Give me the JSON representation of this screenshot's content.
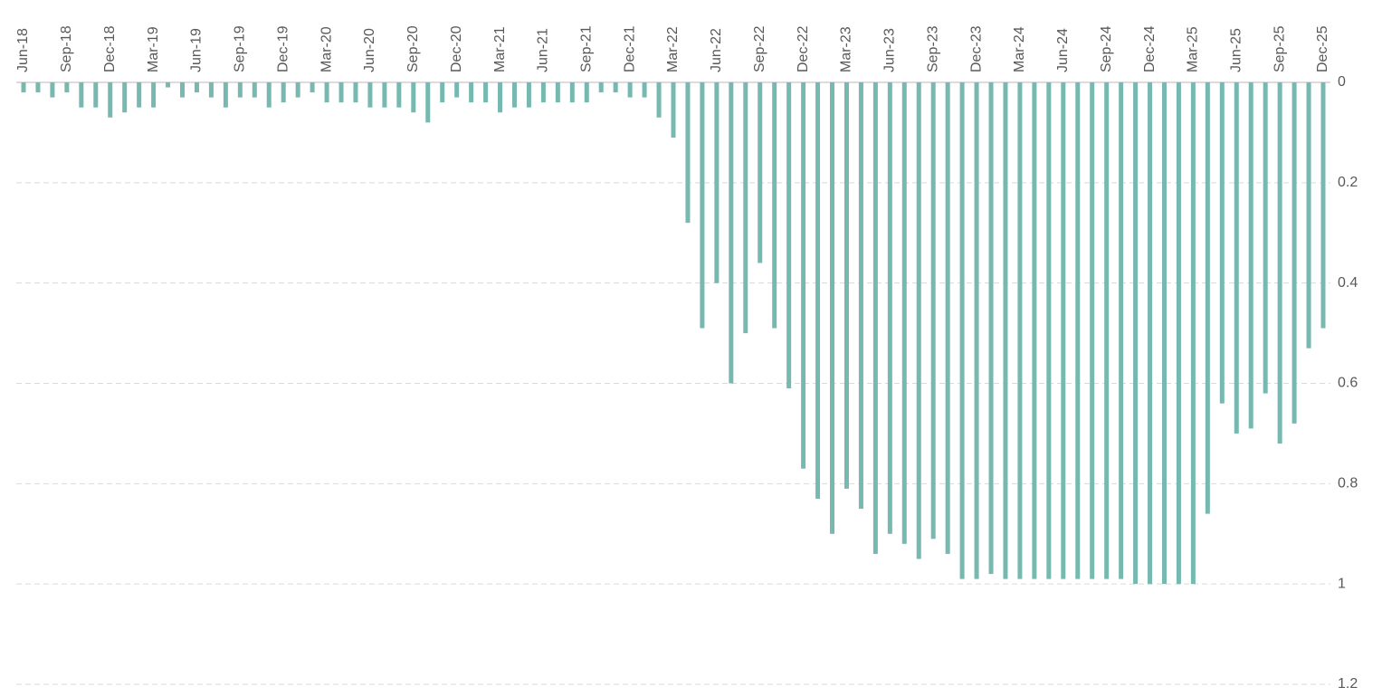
{
  "chart_data": {
    "type": "bar",
    "categories": [
      "Jun-18",
      null,
      null,
      "Sep-18",
      null,
      null,
      "Dec-18",
      null,
      null,
      "Mar-19",
      null,
      null,
      "Jun-19",
      null,
      null,
      "Sep-19",
      null,
      null,
      "Dec-19",
      null,
      null,
      "Mar-20",
      null,
      null,
      "Jun-20",
      null,
      null,
      "Sep-20",
      null,
      null,
      "Dec-20",
      null,
      null,
      "Mar-21",
      null,
      null,
      "Jun-21",
      null,
      null,
      "Sep-21",
      null,
      null,
      "Dec-21",
      null,
      null,
      "Mar-22",
      null,
      null,
      "Jun-22",
      null,
      null,
      "Sep-22",
      null,
      null,
      "Dec-22",
      null,
      null,
      "Mar-23",
      null,
      null,
      "Jun-23",
      null,
      null,
      "Sep-23",
      null,
      null,
      "Dec-23",
      null,
      null,
      "Mar-24",
      null,
      null,
      "Jun-24",
      null,
      null,
      "Sep-24",
      null,
      null,
      "Dec-24",
      null,
      null,
      "Mar-25",
      null,
      null,
      "Jun-25",
      null,
      null,
      "Sep-25",
      null,
      null,
      "Dec-25"
    ],
    "values": [
      0.02,
      0.02,
      0.03,
      0.02,
      0.05,
      0.05,
      0.07,
      0.06,
      0.05,
      0.05,
      0.01,
      0.03,
      0.02,
      0.03,
      0.05,
      0.03,
      0.03,
      0.05,
      0.04,
      0.03,
      0.02,
      0.04,
      0.04,
      0.04,
      0.05,
      0.05,
      0.05,
      0.06,
      0.08,
      0.04,
      0.03,
      0.04,
      0.04,
      0.06,
      0.05,
      0.05,
      0.04,
      0.04,
      0.04,
      0.04,
      0.02,
      0.02,
      0.03,
      0.03,
      0.07,
      0.11,
      0.28,
      0.49,
      0.4,
      0.6,
      0.5,
      0.36,
      0.49,
      0.61,
      0.77,
      0.83,
      0.9,
      0.81,
      0.85,
      0.94,
      0.9,
      0.92,
      0.95,
      0.91,
      0.94,
      0.99,
      0.99,
      0.98,
      0.99,
      0.99,
      0.99,
      0.99,
      0.99,
      0.99,
      0.99,
      0.99,
      0.99,
      1.0,
      1.0,
      1.0,
      1.0,
      1.0,
      0.86,
      0.64,
      0.7,
      0.69,
      0.62,
      0.72,
      0.68,
      0.53,
      0.49
    ],
    "color": "#77b8b1",
    "ylim": [
      0,
      1.2
    ],
    "yticks": [
      0,
      0.2,
      0.4,
      0.6,
      0.8,
      1,
      1.2
    ],
    "y_inverted": true,
    "grid": true
  }
}
